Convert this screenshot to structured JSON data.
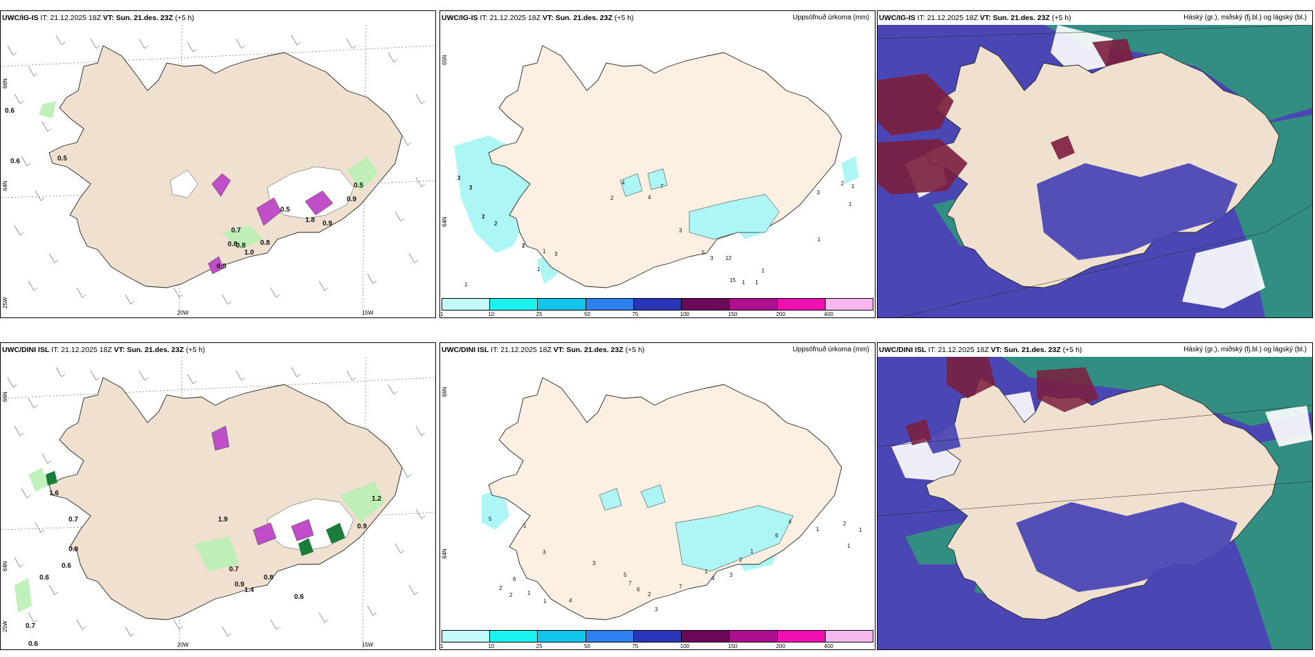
{
  "colors": {
    "land": "#efe0d0",
    "land_plain": "#fdf0e3",
    "coast": "#222222",
    "precip_green": "#b9f0b3",
    "precip_dark": "#1b7d3a",
    "magenta": "#c04ec8",
    "cyan": "#aef5f6",
    "high_cloud": "#7b1e3d",
    "mid_cloud": "#2e9b79",
    "low_cloud": "#4a47b5"
  },
  "top": {
    "wind": {
      "model": "UWC/IG-IS",
      "it_label": "IT:",
      "it_value": "21.12.2025 18Z",
      "vt_label": "VT:",
      "vt_value": "Sun. 21.des. 23Z",
      "lead": "(+5 h)",
      "lat_labels": [
        "66N",
        "64N",
        "25W"
      ],
      "lon_labels": [
        "20W",
        "15W"
      ],
      "values": [
        "0.6",
        "0.6",
        "0.5",
        "0.7",
        "0.8",
        "0.8",
        "1.0",
        "0.9",
        "0.5",
        "0.9",
        "0.5",
        "1.8",
        "0.9",
        "0.8"
      ]
    },
    "precip": {
      "model": "UWC/IG-IS",
      "it_label": "IT:",
      "it_value": "21.12.2025 18Z",
      "vt_label": "VT:",
      "vt_value": "Sun. 21.des. 23Z",
      "lead": "(+5 h)",
      "title": "Uppsöfnuð úrkoma (mm)",
      "lat_labels": [
        "65N",
        "64N"
      ],
      "values": [
        "2",
        "2",
        "2",
        "2",
        "2",
        "1",
        "3",
        "1",
        "1",
        "4",
        "2",
        "7",
        "4",
        "3",
        "5",
        "3",
        "12",
        "15",
        "1",
        "1",
        "1",
        "1",
        "1",
        "1",
        "2",
        "3",
        "1",
        "1",
        "1",
        "2",
        "1"
      ]
    },
    "cloud": {
      "model": "UWC/IG-IS",
      "it_label": "IT:",
      "it_value": "21.12.2025 18Z",
      "vt_label": "VT:",
      "vt_value": "Sun. 21.des. 23Z",
      "lead": "(+5 h)",
      "title": "Háský (gr.), miðský (fj.bl.) og lágský (bl.)"
    }
  },
  "bottom": {
    "wind": {
      "model": "UWC/DINI ISL",
      "it_label": "IT:",
      "it_value": "21.12.2025 18Z",
      "vt_label": "VT:",
      "vt_value": "Sun. 21.des. 23Z",
      "lead": "(+5 h)",
      "lat_labels": [
        "66N",
        "64N",
        "25W"
      ],
      "lon_labels": [
        "20W",
        "15W"
      ],
      "values": [
        "1.6",
        "0.7",
        "0.9",
        "0.6",
        "0.6",
        "0.7",
        "0.6",
        "0.7",
        "0.9",
        "1.4",
        "0.8",
        "0.6",
        "1.2",
        "0.9",
        "1.9"
      ]
    },
    "precip": {
      "model": "UWC/DINI ISL",
      "it_label": "IT:",
      "it_value": "21.12.2025 18Z",
      "vt_label": "VT:",
      "vt_value": "Sun. 21.des. 23Z",
      "lead": "(+5 h)",
      "title": "Uppsöfnuð úrkoma (mm)",
      "lat_labels": [
        "66N",
        "64N"
      ],
      "values": [
        "5",
        "1",
        "3",
        "6",
        "2",
        "2",
        "1",
        "1",
        "4",
        "3",
        "5",
        "7",
        "6",
        "2",
        "3",
        "7",
        "1",
        "4",
        "3",
        "2",
        "1",
        "6",
        "4",
        "1",
        "2",
        "1",
        "1"
      ]
    },
    "cloud": {
      "model": "UWC/DINI ISL",
      "it_label": "IT:",
      "it_value": "21.12.2025 18Z",
      "vt_label": "VT:",
      "vt_value": "Sun. 21.des. 23Z",
      "lead": "(+5 h)",
      "title": "Háský (gr.), miðský (fj.bl.) og lágský (bl.)"
    }
  },
  "colorbar": {
    "ticks": [
      "1",
      "10",
      "25",
      "50",
      "75",
      "100",
      "150",
      "200",
      "400"
    ],
    "colors": [
      "#c4fbfa",
      "#19f2ee",
      "#11c6ea",
      "#2f7ff0",
      "#2a35b8",
      "#6b0a5a",
      "#ad0f8f",
      "#f010b2",
      "#f6b6ee"
    ]
  }
}
